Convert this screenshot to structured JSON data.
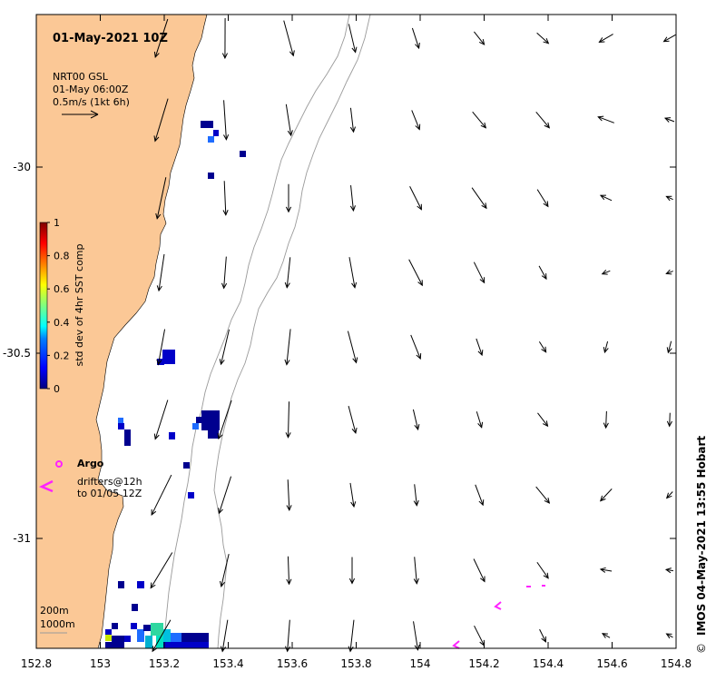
{
  "map": {
    "title": "01-May-2021 10Z",
    "current_legend": {
      "line1": "NRT00 GSL",
      "line2": "01-May 06:00Z",
      "line3": "0.5m/s (1kt 6h)"
    },
    "colorbar": {
      "label": "std dev of 4hr SST comp",
      "ticks": [
        "0",
        "0.2",
        "0.4",
        "0.6",
        "0.8",
        "1"
      ],
      "colors": [
        "#00007f",
        "#0000ff",
        "#007fff",
        "#00ffff",
        "#7fff7f",
        "#ffff00",
        "#ff7f00",
        "#ff0000",
        "#7f0000"
      ]
    },
    "argo_label": "Argo",
    "drifters_line1": "drifters@12h",
    "drifters_line2": "to 01/05 12Z",
    "depth_legend": [
      "200m",
      "1000m"
    ],
    "x_ticks": [
      "152.8",
      "153",
      "153.2",
      "153.4",
      "153.6",
      "153.8",
      "154",
      "154.2",
      "154.4",
      "154.6",
      "154.8"
    ],
    "y_ticks": [
      "-30",
      "-30.5",
      "-31"
    ],
    "credit": "IMOS 04-May-2021 13:55 Hobart",
    "copyright_symbol": "©",
    "land_color": "#fbc896",
    "marker_color": "#ff22ff"
  }
}
